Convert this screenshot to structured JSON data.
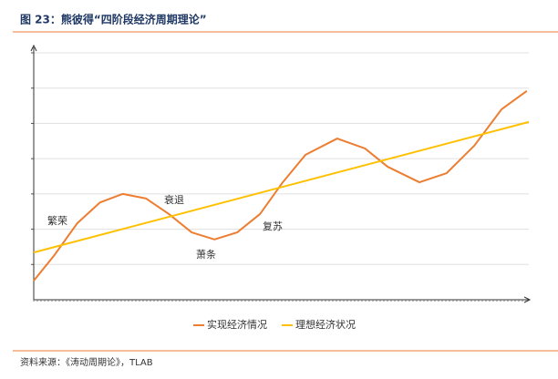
{
  "chart_data": {
    "type": "line",
    "title": "图 23：熊彼得“四阶段经济周期理论”",
    "source": "资料来源：《涛动周期论》，TLAB",
    "xlim": [
      0,
      100
    ],
    "ylim": [
      0,
      7
    ],
    "grid": true,
    "annotations": [
      "繁荣",
      "衰退",
      "萧条",
      "复苏"
    ],
    "series": [
      {
        "name": "实现经济情况",
        "color": "#ed7d31",
        "x": [
          0,
          4.2,
          8.8,
          13.4,
          18,
          22.7,
          27.3,
          31.9,
          36.5,
          41.1,
          45.7,
          50.3,
          54.9,
          61.3,
          66.9,
          71.5,
          77.9,
          83.4,
          89,
          94.5,
          99.6
        ],
        "values": [
          0.54,
          1.27,
          2.17,
          2.76,
          3.0,
          2.87,
          2.43,
          1.91,
          1.71,
          1.91,
          2.43,
          3.33,
          4.11,
          4.57,
          4.29,
          3.77,
          3.33,
          3.59,
          4.37,
          5.4,
          5.92
        ]
      },
      {
        "name": "理想经济状况",
        "color": "#ffc000",
        "x": [
          0,
          100
        ],
        "values": [
          1.34,
          5.04
        ]
      }
    ]
  }
}
